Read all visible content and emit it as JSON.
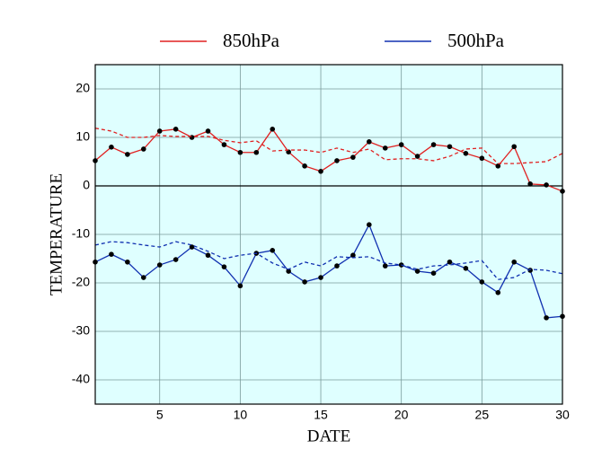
{
  "chart_data": {
    "type": "line",
    "x_label": "DATE",
    "y_label": "TEMPERATURE",
    "x": [
      1,
      2,
      3,
      4,
      5,
      6,
      7,
      8,
      9,
      10,
      11,
      12,
      13,
      14,
      15,
      16,
      17,
      18,
      19,
      20,
      21,
      22,
      23,
      24,
      25,
      26,
      27,
      28,
      29,
      30
    ],
    "xlim": [
      1,
      30
    ],
    "xticks": [
      5,
      10,
      15,
      20,
      25,
      30
    ],
    "ylim": [
      -45,
      25
    ],
    "yticks": [
      -40,
      -30,
      -20,
      -10,
      0,
      10,
      20
    ],
    "grid": true,
    "zero_line": true,
    "background": "#dfffff",
    "legend": "top",
    "series": [
      {
        "name": "850hPa",
        "color": "#e02020",
        "markers": true,
        "values": [
          5.2,
          8.0,
          6.5,
          7.6,
          11.3,
          11.7,
          10.0,
          11.3,
          8.5,
          6.9,
          6.9,
          11.7,
          7.0,
          4.1,
          3.0,
          5.2,
          5.9,
          9.1,
          7.8,
          8.5,
          6.1,
          8.5,
          8.1,
          6.7,
          5.7,
          4.1,
          8.1,
          0.4,
          0.2,
          -1.1
        ]
      },
      {
        "name": "500hPa",
        "color": "#1030b0",
        "markers": true,
        "values": [
          -15.7,
          -14.1,
          -15.7,
          -18.9,
          -16.3,
          -15.2,
          -12.6,
          -14.3,
          -16.7,
          -20.6,
          -13.9,
          -13.3,
          -17.6,
          -19.8,
          -18.9,
          -16.5,
          -14.3,
          -8.0,
          -16.5,
          -16.3,
          -17.6,
          -18.0,
          -15.7,
          -17.0,
          -19.8,
          -22.0,
          -15.7,
          -17.4,
          -27.2,
          -26.9
        ]
      },
      {
        "color": "#e02020",
        "dashed": true,
        "values": [
          11.9,
          11.3,
          10.0,
          10.0,
          10.4,
          10.2,
          10.2,
          10.2,
          9.4,
          8.9,
          9.3,
          7.2,
          7.4,
          7.4,
          6.9,
          7.8,
          6.9,
          7.6,
          5.4,
          5.6,
          5.6,
          5.2,
          6.1,
          7.6,
          7.8,
          4.6,
          4.6,
          4.8,
          5.0,
          6.7
        ]
      },
      {
        "color": "#1030b0",
        "dashed": true,
        "values": [
          -12.2,
          -11.5,
          -11.7,
          -12.2,
          -12.6,
          -11.5,
          -12.2,
          -13.5,
          -15.0,
          -14.3,
          -13.9,
          -15.9,
          -17.2,
          -15.7,
          -16.5,
          -14.6,
          -14.8,
          -14.6,
          -15.9,
          -16.3,
          -17.2,
          -16.5,
          -16.3,
          -15.9,
          -15.4,
          -19.3,
          -18.9,
          -17.2,
          -17.4,
          -18.1
        ]
      }
    ]
  }
}
